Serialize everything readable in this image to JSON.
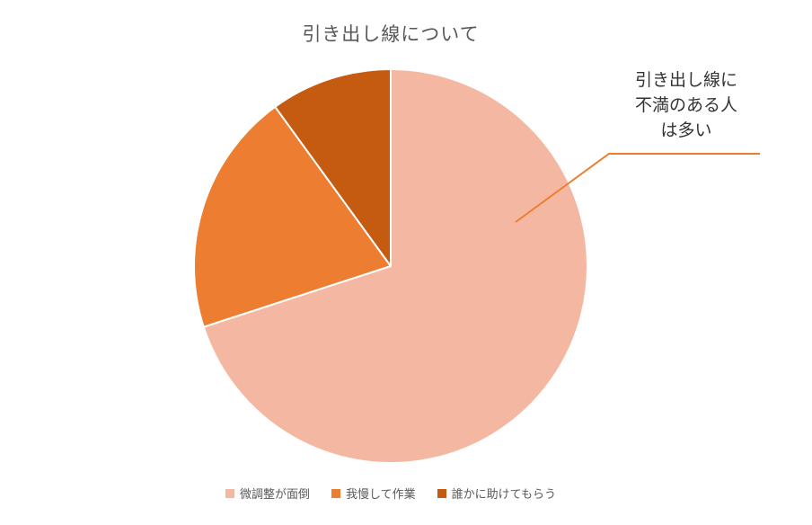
{
  "chart_data": {
    "type": "pie",
    "title": "引き出し線について",
    "categories": [
      "微調整が面倒",
      "我慢して作業",
      "誰かに助けてもらう"
    ],
    "values": [
      70,
      20,
      10
    ],
    "colors": [
      "#F4B7A1",
      "#ED7D31",
      "#C55A11"
    ],
    "start_angle_deg": 0,
    "direction": "clockwise",
    "slice_border_color": "#FFFFFF",
    "legend_position": "bottom",
    "annotation": {
      "text": "引き出し線に\n不満のある人\nは多い",
      "leader_line_color": "#ED7D31"
    }
  }
}
